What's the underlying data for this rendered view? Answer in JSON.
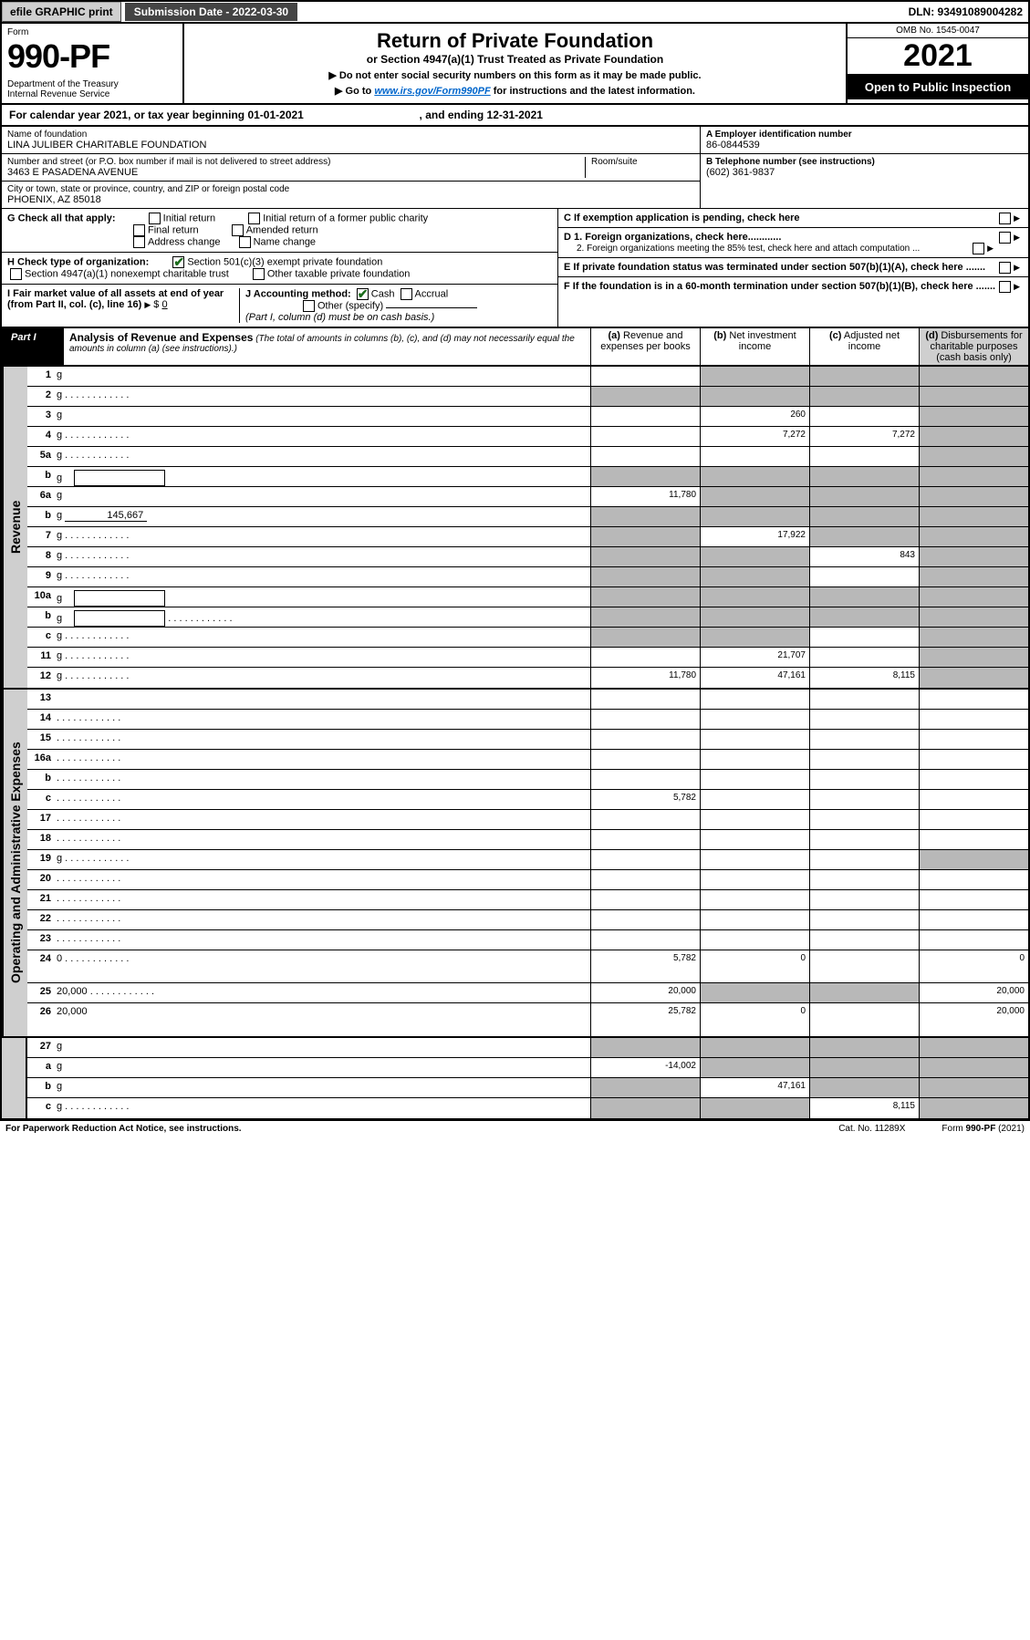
{
  "topbar": {
    "efile": "efile GRAPHIC print",
    "submission": "Submission Date - 2022-03-30",
    "dln": "DLN: 93491089004282"
  },
  "header": {
    "form": "Form",
    "num": "990-PF",
    "dept": "Department of the Treasury\nInternal Revenue Service",
    "title": "Return of Private Foundation",
    "subtitle": "or Section 4947(a)(1) Trust Treated as Private Foundation",
    "note1": "▶ Do not enter social security numbers on this form as it may be made public.",
    "note2_pre": "▶ Go to ",
    "note2_link": "www.irs.gov/Form990PF",
    "note2_post": " for instructions and the latest information.",
    "omb": "OMB No. 1545-0047",
    "year": "2021",
    "open": "Open to Public Inspection"
  },
  "cal": {
    "text_pre": "For calendar year 2021, or tax year beginning ",
    "begin": "01-01-2021",
    "text_mid": ", and ending ",
    "end": "12-31-2021"
  },
  "foundation": {
    "name_label": "Name of foundation",
    "name": "LINA JULIBER CHARITABLE FOUNDATION",
    "addr_label": "Number and street (or P.O. box number if mail is not delivered to street address)",
    "room_label": "Room/suite",
    "addr": "3463 E PASADENA AVENUE",
    "city_label": "City or town, state or province, country, and ZIP or foreign postal code",
    "city": "PHOENIX, AZ  85018"
  },
  "einbox": {
    "a_label": "A Employer identification number",
    "a_val": "86-0844539",
    "b_label": "B Telephone number (see instructions)",
    "b_val": "(602) 361-9837",
    "c_label": "C If exemption application is pending, check here",
    "d1_label": "D 1. Foreign organizations, check here............",
    "d2_label": "2. Foreign organizations meeting the 85% test, check here and attach computation ...",
    "e_label": "E  If private foundation status was terminated under section 507(b)(1)(A), check here .......",
    "f_label": "F  If the foundation is in a 60-month termination under section 507(b)(1)(B), check here .......",
    "g_label": "G Check all that apply:",
    "g_opts": [
      "Initial return",
      "Initial return of a former public charity",
      "Final return",
      "Amended return",
      "Address change",
      "Name change"
    ],
    "h_label": "H Check type of organization:",
    "h_opts": [
      "Section 501(c)(3) exempt private foundation",
      "Section 4947(a)(1) nonexempt charitable trust",
      "Other taxable private foundation"
    ],
    "i_label": "I Fair market value of all assets at end of year (from Part II, col. (c), line 16)",
    "i_val": "0",
    "j_label": "J Accounting method:",
    "j_opts": [
      "Cash",
      "Accrual",
      "Other (specify)"
    ],
    "j_note": "(Part I, column (d) must be on cash basis.)"
  },
  "part1": {
    "label": "Part I",
    "title": "Analysis of Revenue and Expenses",
    "title_paren": "(The total of amounts in columns (b), (c), and (d) may not necessarily equal the amounts in column (a) (see instructions).)",
    "col_a": "(a) Revenue and expenses per books",
    "col_b": "(b) Net investment income",
    "col_c": "(c) Adjusted net income",
    "col_d": "(d) Disbursements for charitable purposes (cash basis only)",
    "side_rev": "Revenue",
    "side_exp": "Operating and Administrative Expenses"
  },
  "rows": [
    {
      "n": "1",
      "d": "g",
      "a": "",
      "b": "g",
      "c": "g"
    },
    {
      "n": "2",
      "d": "g",
      "dots": 1,
      "a": "g",
      "b": "g",
      "c": "g"
    },
    {
      "n": "3",
      "d": "g",
      "a": "",
      "b": "260",
      "c": ""
    },
    {
      "n": "4",
      "d": "g",
      "dots": 1,
      "a": "",
      "b": "7,272",
      "c": "7,272"
    },
    {
      "n": "5a",
      "d": "g",
      "dots": 1,
      "a": "",
      "b": "",
      "c": ""
    },
    {
      "n": "b",
      "d": "g",
      "sub": 1,
      "a": "g",
      "b": "g",
      "c": "g"
    },
    {
      "n": "6a",
      "d": "g",
      "a": "11,780",
      "b": "g",
      "c": "g"
    },
    {
      "n": "b",
      "d": "g",
      "subval": "145,667",
      "a": "g",
      "b": "g",
      "c": "g"
    },
    {
      "n": "7",
      "d": "g",
      "dots": 1,
      "a": "g",
      "b": "17,922",
      "c": "g"
    },
    {
      "n": "8",
      "d": "g",
      "dots": 1,
      "a": "g",
      "b": "g",
      "c": "843"
    },
    {
      "n": "9",
      "d": "g",
      "dots": 1,
      "a": "g",
      "b": "g",
      "c": ""
    },
    {
      "n": "10a",
      "d": "g",
      "sub": 1,
      "a": "g",
      "b": "g",
      "c": "g"
    },
    {
      "n": "b",
      "d": "g",
      "dots": 1,
      "sub": 1,
      "a": "g",
      "b": "g",
      "c": "g"
    },
    {
      "n": "c",
      "d": "g",
      "dots": 1,
      "a": "g",
      "b": "g",
      "c": ""
    },
    {
      "n": "11",
      "d": "g",
      "dots": 1,
      "a": "",
      "b": "21,707",
      "c": ""
    },
    {
      "n": "12",
      "d": "g",
      "dots": 1,
      "a": "11,780",
      "b": "47,161",
      "c": "8,115"
    }
  ],
  "rows2": [
    {
      "n": "13",
      "d": "",
      "a": "",
      "b": "",
      "c": ""
    },
    {
      "n": "14",
      "d": "",
      "dots": 1,
      "a": "",
      "b": "",
      "c": ""
    },
    {
      "n": "15",
      "d": "",
      "dots": 1,
      "a": "",
      "b": "",
      "c": ""
    },
    {
      "n": "16a",
      "d": "",
      "dots": 1,
      "a": "",
      "b": "",
      "c": ""
    },
    {
      "n": "b",
      "d": "",
      "dots": 1,
      "a": "",
      "b": "",
      "c": ""
    },
    {
      "n": "c",
      "d": "",
      "dots": 1,
      "a": "5,782",
      "b": "",
      "c": ""
    },
    {
      "n": "17",
      "d": "",
      "dots": 1,
      "a": "",
      "b": "",
      "c": ""
    },
    {
      "n": "18",
      "d": "",
      "dots": 1,
      "a": "",
      "b": "",
      "c": ""
    },
    {
      "n": "19",
      "d": "g",
      "dots": 1,
      "a": "",
      "b": "",
      "c": ""
    },
    {
      "n": "20",
      "d": "",
      "dots": 1,
      "a": "",
      "b": "",
      "c": ""
    },
    {
      "n": "21",
      "d": "",
      "dots": 1,
      "a": "",
      "b": "",
      "c": ""
    },
    {
      "n": "22",
      "d": "",
      "dots": 1,
      "a": "",
      "b": "",
      "c": ""
    },
    {
      "n": "23",
      "d": "",
      "dots": 1,
      "a": "",
      "b": "",
      "c": ""
    },
    {
      "n": "24",
      "d": "0",
      "dots": 1,
      "a": "5,782",
      "b": "0",
      "c": "",
      "tall": 1
    },
    {
      "n": "25",
      "d": "20,000",
      "dots": 1,
      "a": "20,000",
      "b": "g",
      "c": "g"
    },
    {
      "n": "26",
      "d": "20,000",
      "a": "25,782",
      "b": "0",
      "c": "",
      "tall": 1
    }
  ],
  "rows3": [
    {
      "n": "27",
      "d": "g",
      "a": "g",
      "b": "g",
      "c": "g"
    },
    {
      "n": "a",
      "d": "g",
      "a": "-14,002",
      "b": "g",
      "c": "g"
    },
    {
      "n": "b",
      "d": "g",
      "a": "g",
      "b": "47,161",
      "c": "g"
    },
    {
      "n": "c",
      "d": "g",
      "dots": 1,
      "a": "g",
      "b": "g",
      "c": "8,115"
    }
  ],
  "footer": {
    "left": "For Paperwork Reduction Act Notice, see instructions.",
    "mid": "Cat. No. 11289X",
    "right": "Form 990-PF (2021)"
  }
}
